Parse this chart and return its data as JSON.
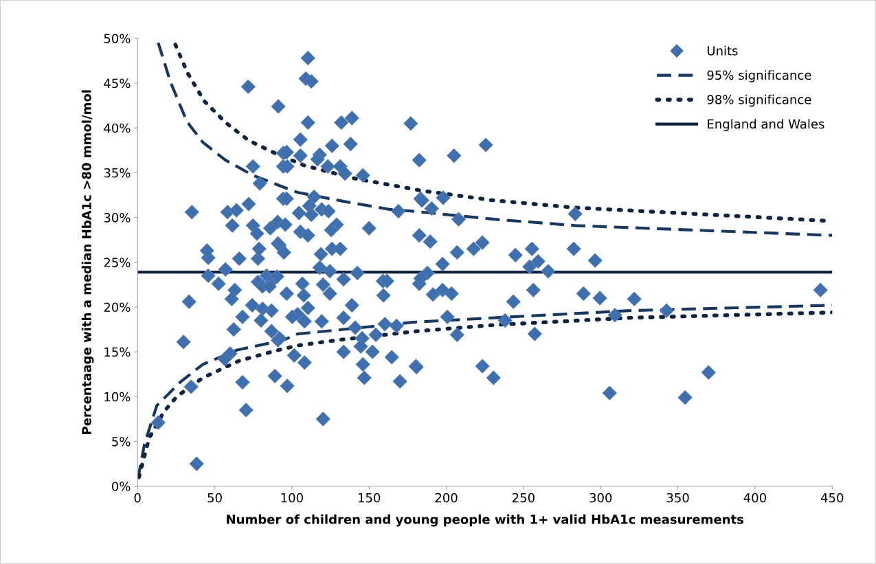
{
  "chart_data": {
    "type": "scatter",
    "xlabel": "Number of children and young people with 1+ valid HbA1c measurements",
    "ylabel": "Percentaage with a median HbA1c >80 mmol/mol",
    "xlim": [
      0,
      450
    ],
    "xticks": [
      0,
      50,
      100,
      150,
      200,
      250,
      300,
      350,
      400,
      450
    ],
    "ylim": [
      0,
      50
    ],
    "yticks": [
      {
        "value": 0,
        "label": "0%"
      },
      {
        "value": 5,
        "label": "5%"
      },
      {
        "value": 10,
        "label": "10%"
      },
      {
        "value": 15,
        "label": "15%"
      },
      {
        "value": 20,
        "label": "20%"
      },
      {
        "value": 25,
        "label": "25%"
      },
      {
        "value": 30,
        "label": "30%"
      },
      {
        "value": 35,
        "label": "35%"
      },
      {
        "value": 40,
        "label": "40%"
      },
      {
        "value": 45,
        "label": "45%"
      },
      {
        "value": 50,
        "label": "50%"
      }
    ],
    "grid": false,
    "legend": "top right",
    "series": [
      {
        "name": "Units",
        "marker": "diamond",
        "color": "#3f70ad",
        "x": [
          33.4,
          29.8,
          13.4,
          38.3,
          34.7,
          45.8,
          57,
          52.5,
          45.8,
          65.9,
          78,
          63,
          61,
          74.3,
          68,
          62.3,
          81,
          86.8,
          80,
          86.8,
          91,
          60,
          56.5,
          68,
          70.3,
          89,
          78,
          83.7,
          88,
          81,
          85.5,
          71.7,
          91.2,
          74.8,
          79.2,
          35.2,
          72,
          58.3,
          64.1,
          61.4,
          74.8,
          77.4,
          86,
          90.8,
          45,
          78.8,
          91,
          94.4,
          94.4,
          94.4,
          110.4,
          109,
          112.6,
          110.4,
          132,
          138.9,
          177,
          105.5,
          126,
          138,
          96.6,
          105.5,
          118,
          116.6,
          182.5,
          97,
          123.3,
          131.3,
          134.4,
          146,
          96.6,
          114.4,
          111.3,
          104.6,
          119.3,
          123.7,
          112.6,
          95.7,
          105.5,
          110.4,
          129,
          125.5,
          150,
          169,
          183.4,
          182.5,
          92,
          94.8,
          118.8,
          126,
          131.3,
          118,
          124.6,
          133.5,
          142.4,
          90.4,
          106.8,
          120.2,
          96.6,
          107.7,
          124.6,
          159,
          161.6,
          159.3,
          182.5,
          138.9,
          110.4,
          103.7,
          100.2,
          108.2,
          119.3,
          133.5,
          141,
          160.2,
          167.8,
          92,
          145.5,
          154.4,
          144.6,
          133.5,
          152.2,
          101.5,
          108.2,
          146,
          164.7,
          180.3,
          97,
          146.9,
          170,
          120.2,
          205,
          225.6,
          184.3,
          198,
          190.5,
          208,
          283.5,
          189.6,
          207,
          217.7,
          223.4,
          244.8,
          255.5,
          259.5,
          254,
          266,
          282.6,
          296.4,
          197.6,
          187.8,
          183.4,
          191.4,
          197.6,
          203.4,
          256.4,
          288.9,
          299.5,
          321.8,
          442.4,
          243.5,
          342.7,
          309.3,
          238.1,
          200.7,
          207,
          257.3,
          180.7,
          223.4,
          230.6,
          305.8,
          354.7,
          369.9
        ],
        "values": [
          20.6,
          16.1,
          7.1,
          2.5,
          11.1,
          23.5,
          24.2,
          22.6,
          25.5,
          25.4,
          25.4,
          21.9,
          20.9,
          20.2,
          18.9,
          17.5,
          19.8,
          19.6,
          18.5,
          17.3,
          16.3,
          14.8,
          14.2,
          11.6,
          8.5,
          12.3,
          22.8,
          23.5,
          23.1,
          22.3,
          22.3,
          44.6,
          42.4,
          35.7,
          33.8,
          30.6,
          31.5,
          30.6,
          30.8,
          29.1,
          29.1,
          28.2,
          28.8,
          29.5,
          26.3,
          26.5,
          27.1,
          37.2,
          35.7,
          32.1,
          47.8,
          45.5,
          45.2,
          40.6,
          40.6,
          41.1,
          40.5,
          38.7,
          38.0,
          38.2,
          37.3,
          36.9,
          37.0,
          36.5,
          36.4,
          35.7,
          35.7,
          35.7,
          34.9,
          34.7,
          32.1,
          32.3,
          31.3,
          30.5,
          30.9,
          30.7,
          30.3,
          29.2,
          28.4,
          28.0,
          29.2,
          28.6,
          28.8,
          30.7,
          32.1,
          28.0,
          26.9,
          26.1,
          25.9,
          26.5,
          26.5,
          24.4,
          24.0,
          23.1,
          23.8,
          23.4,
          22.6,
          22.5,
          21.5,
          21.3,
          21.5,
          22.9,
          22.9,
          21.3,
          22.6,
          20.2,
          19.9,
          19.2,
          18.9,
          18.4,
          18.4,
          18.8,
          17.7,
          18.1,
          17.9,
          16.5,
          16.5,
          16.9,
          15.6,
          15.0,
          15.0,
          14.6,
          13.8,
          13.6,
          14.4,
          13.4,
          11.2,
          12.1,
          11.7,
          7.5,
          36.9,
          38.1,
          31.9,
          32.2,
          31.0,
          29.8,
          30.4,
          27.3,
          26.1,
          26.5,
          27.2,
          25.8,
          26.5,
          25.1,
          24.5,
          24.0,
          26.5,
          25.2,
          24.8,
          23.8,
          23.2,
          21.4,
          21.9,
          21.5,
          21.9,
          21.5,
          21.0,
          20.9,
          21.9,
          20.6,
          19.6,
          19.1,
          18.5,
          18.9,
          16.9,
          17.0,
          13.3,
          13.4,
          12.1,
          10.4,
          9.9,
          12.7
        ]
      },
      {
        "name": "95% significance",
        "type": "line",
        "line_style": "dashed",
        "color": "#17375e",
        "x": [
          13.4,
          21.4,
          32,
          42.3,
          57,
          74.8,
          94.4,
          103.7,
          133.5,
          163.3,
          178,
          231,
          283.5,
          450
        ],
        "values": [
          49.5,
          45.1,
          40.7,
          38.4,
          36.4,
          34.7,
          33.4,
          32.8,
          31.8,
          30.9,
          30.7,
          29.8,
          29.1,
          28.0
        ]
      },
      {
        "type": "line",
        "line_style": "dashed",
        "color": "#17375e",
        "x": [
          0.5,
          0.9,
          4.5,
          12.5,
          27.6,
          42.3,
          64.5,
          94.4,
          103.7,
          133.5,
          178,
          231,
          319,
          450
        ],
        "values": [
          0.8,
          1.4,
          4.7,
          9.0,
          11.6,
          13.6,
          15.2,
          16.3,
          17.0,
          17.5,
          18.3,
          18.8,
          19.6,
          20.2
        ]
      },
      {
        "name": "98% significance",
        "type": "line",
        "line_style": "dotted",
        "color": "#0f2341",
        "x": [
          24.5,
          32.5,
          43.2,
          57,
          72,
          90,
          108.2,
          139.3,
          183.8,
          231,
          283.5,
          450
        ],
        "values": [
          49.3,
          46.1,
          43.0,
          40.6,
          38.6,
          37.1,
          35.8,
          34.4,
          33.0,
          31.9,
          31.1,
          29.6
        ]
      },
      {
        "type": "line",
        "line_style": "dotted",
        "color": "#0f2341",
        "x": [
          0.9,
          7.6,
          17,
          25.4,
          42.3,
          65.9,
          91.2,
          103.7,
          129,
          181,
          231,
          319,
          450
        ],
        "values": [
          1.0,
          5.4,
          8.3,
          10.0,
          12.1,
          14.0,
          15.2,
          15.7,
          16.3,
          17.3,
          18.0,
          18.8,
          19.4
        ]
      },
      {
        "name": "England and Wales",
        "type": "line",
        "line_style": "solid",
        "color": "#0f2341",
        "x": [
          0,
          450
        ],
        "values": [
          23.9,
          23.9
        ]
      }
    ]
  }
}
